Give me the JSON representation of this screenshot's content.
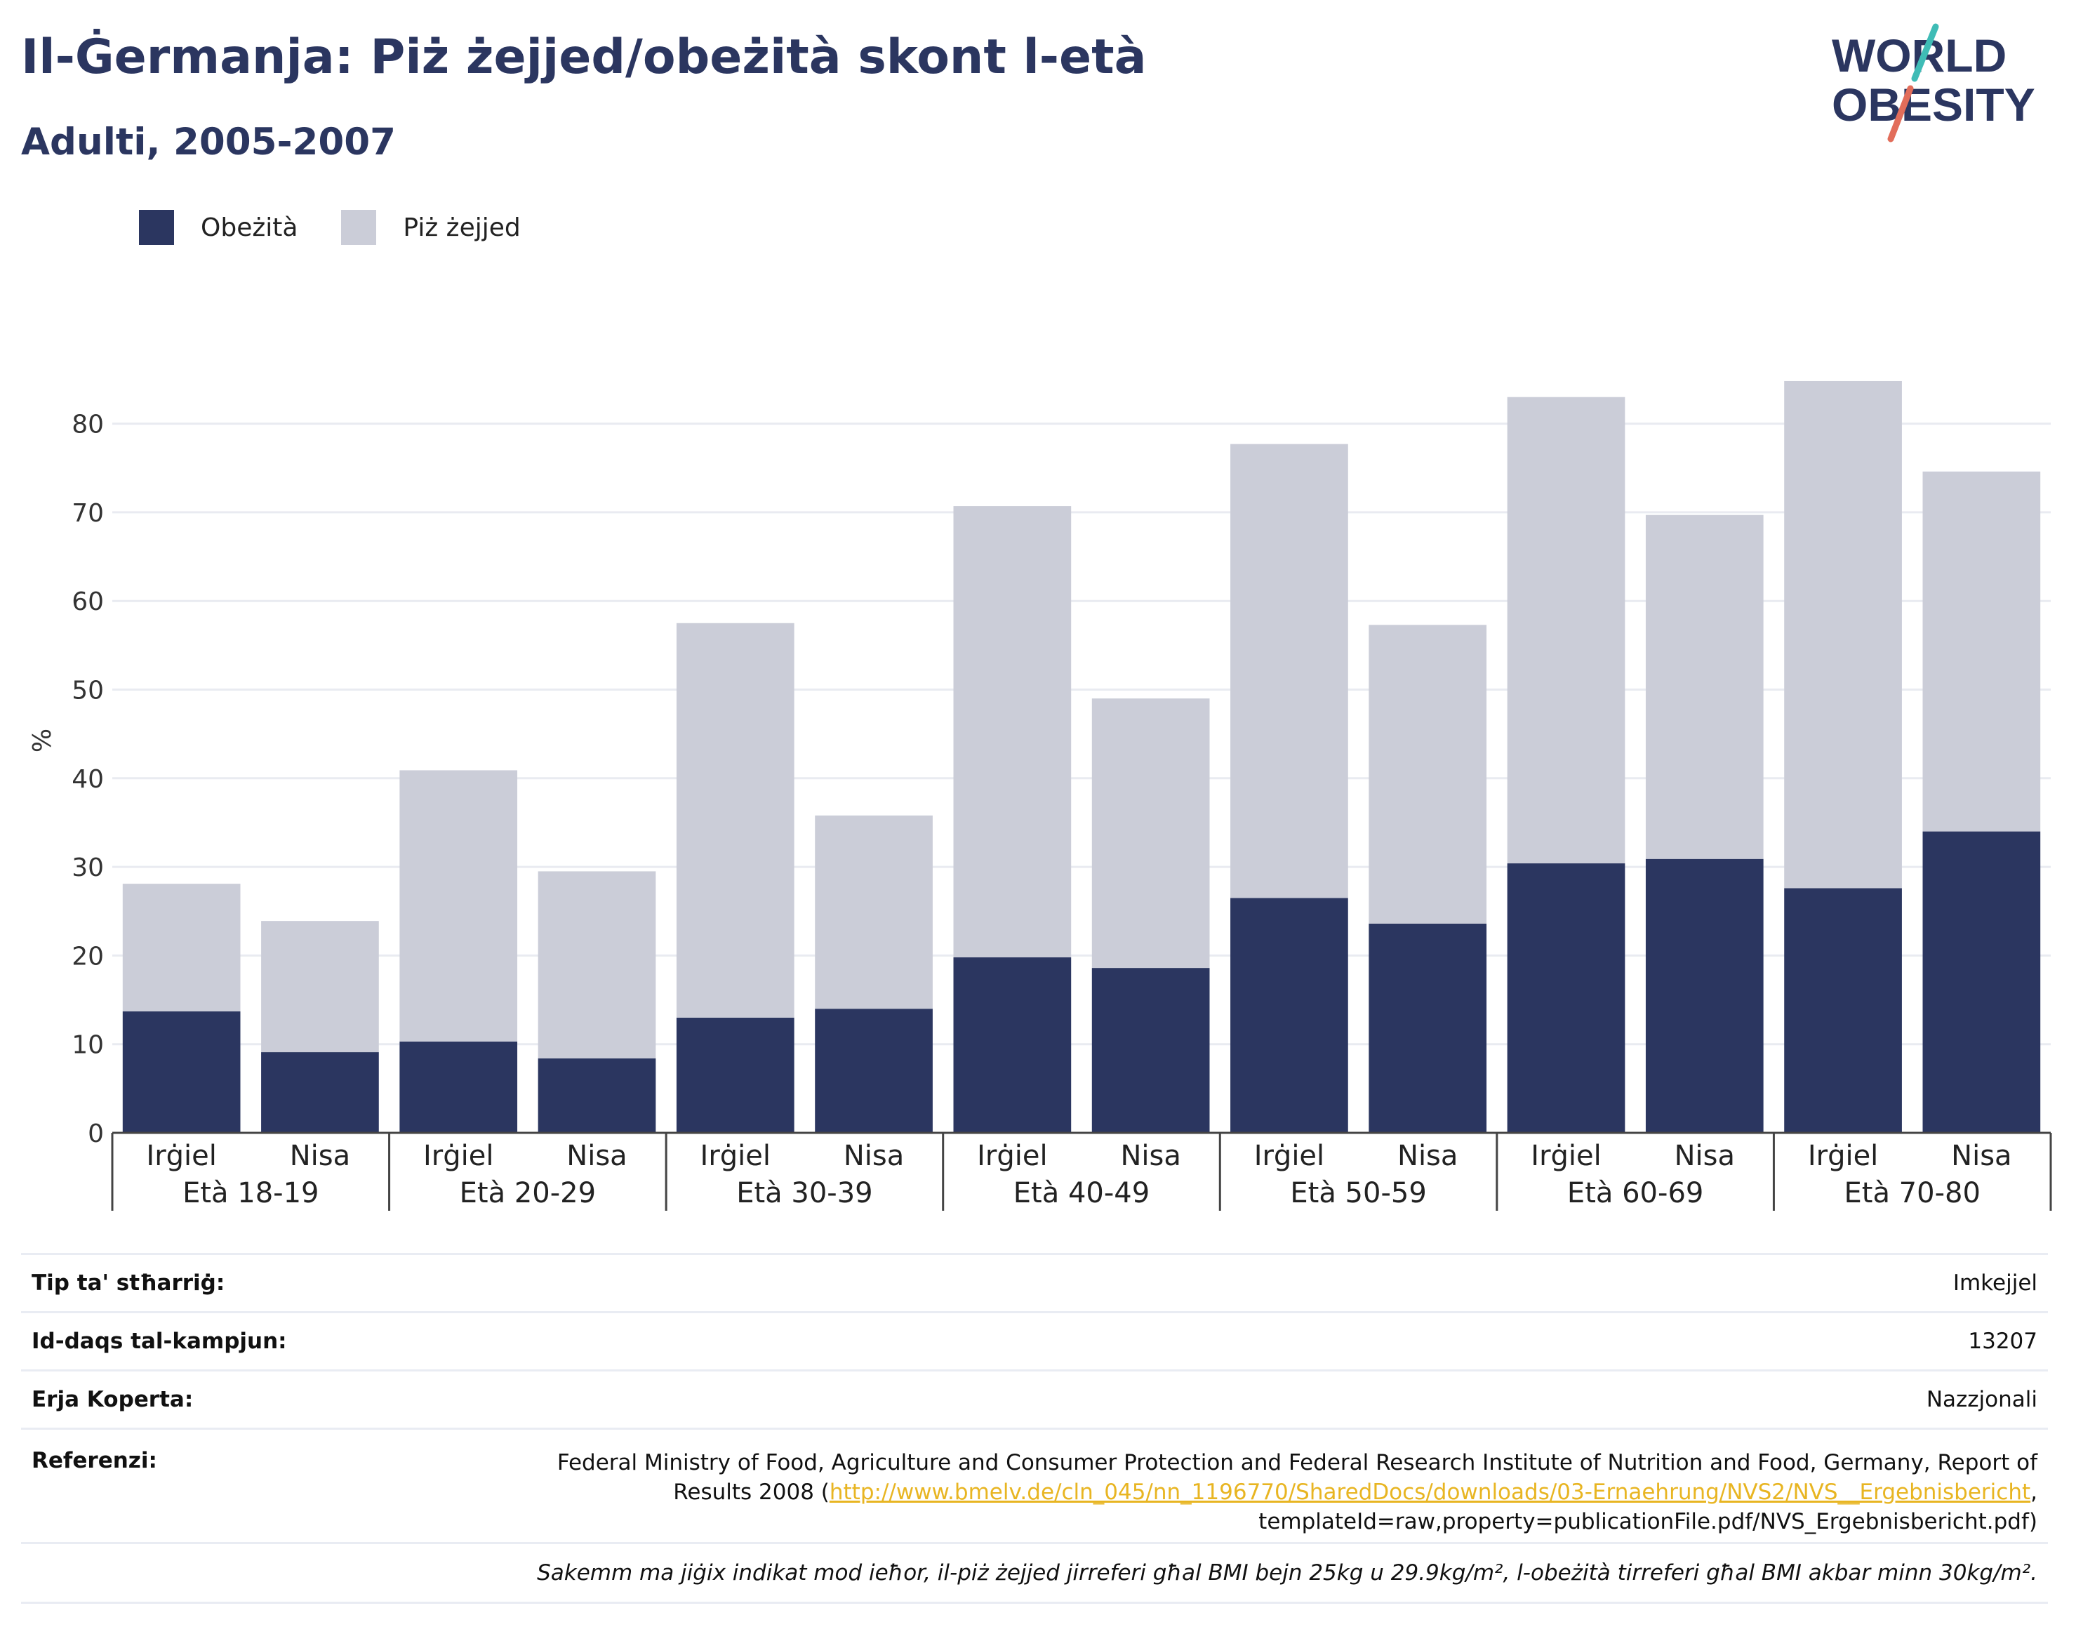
{
  "title": "Il-Ġermanja: Piż żejjed/obeżità skont l-età",
  "subtitle": "Adulti, 2005-2007",
  "logo": {
    "line1": "WORLD",
    "line2": "OBESITY",
    "colors": [
      "#2b3660",
      "#3fbcb6",
      "#e26d5a"
    ]
  },
  "legend": [
    {
      "label": "Obeżità",
      "color": "#2b3660"
    },
    {
      "label": "Piż żejjed",
      "color": "#cbcdd8"
    }
  ],
  "chart_data": {
    "type": "bar",
    "stacked": true,
    "ylabel": "%",
    "ylim": [
      0,
      90
    ],
    "yticks": [
      0,
      10,
      20,
      30,
      40,
      50,
      60,
      70,
      80
    ],
    "grid": true,
    "legend_position": "top-left",
    "groups": [
      "Età 18-19",
      "Età 20-29",
      "Età 30-39",
      "Età 40-49",
      "Età 50-59",
      "Età 60-69",
      "Età 70-80"
    ],
    "subcategories": [
      "Irġiel",
      "Nisa"
    ],
    "series": [
      {
        "name": "Obeżità",
        "color": "#2b3660",
        "values": [
          13.7,
          9.1,
          10.3,
          8.4,
          13.0,
          14.0,
          19.8,
          18.6,
          26.5,
          23.6,
          30.4,
          30.9,
          27.6,
          34.0
        ]
      },
      {
        "name": "Piż żejjed",
        "color": "#cbcdd8",
        "values": [
          14.4,
          14.8,
          30.6,
          21.1,
          44.5,
          21.8,
          50.9,
          30.4,
          51.2,
          33.7,
          52.6,
          38.8,
          57.2,
          40.6
        ]
      }
    ]
  },
  "meta": {
    "survey_type_label": "Tip ta' stħarriġ:",
    "survey_type_value": "Imkejjel",
    "sample_size_label": "Id-daqs tal-kampjun:",
    "sample_size_value": "13207",
    "area_label": "Erja Koperta:",
    "area_value": "Nazzjonali",
    "references_label": "Referenzi:",
    "references_text_1": "Federal Ministry of Food, Agriculture and Consumer Protection and Federal Research Institute of Nutrition and Food, Germany, Report of Results 2008 (",
    "references_link": "http://www.bmelv.de/cln_045/nn_1196770/SharedDocs/downloads/03-Ernaehrung/NVS2/NVS__Ergebnisbericht",
    "references_text_2": ", templateId=raw,property=publicationFile.pdf/NVS_Ergebnisbericht.pdf)",
    "note": "Sakemm ma jiġix indikat mod ieħor, il-piż żejjed jirreferi għal BMI bejn 25kg u 29.9kg/m², l-obeżità tirreferi għal BMI akbar minn 30kg/m²."
  }
}
